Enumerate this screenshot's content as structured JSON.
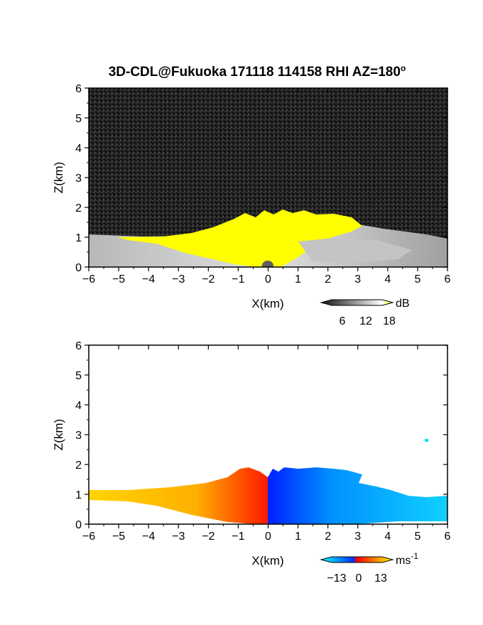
{
  "title": "3D-CDL@Fukuoka 171118 114158 RHI AZ=180",
  "title_sup": "o",
  "chart_data": [
    {
      "type": "heatmap",
      "name": "reflectivity",
      "xlabel": "X(km)",
      "ylabel": "Z(km)",
      "xlim": [
        -6,
        6
      ],
      "ylim": [
        0,
        6
      ],
      "x_ticks": [
        "-6",
        "-5",
        "-4",
        "-3",
        "-2",
        "-1",
        "0",
        "1",
        "2",
        "3",
        "4",
        "5",
        "6"
      ],
      "y_ticks": [
        "0",
        "1",
        "2",
        "3",
        "4",
        "5",
        "6"
      ],
      "colorbar": {
        "unit": "dB",
        "ticks": [
          "6",
          "12",
          "18"
        ],
        "range": [
          0,
          20
        ],
        "palette": [
          "#111111",
          "#ffffff",
          "#ffff00"
        ]
      },
      "echo_top_km": [
        [
          -6,
          1.0
        ],
        [
          -5,
          0.9
        ],
        [
          -4,
          0.9
        ],
        [
          -3,
          1.0
        ],
        [
          -2,
          1.2
        ],
        [
          -1,
          1.5
        ],
        [
          0,
          1.8
        ],
        [
          1,
          1.8
        ],
        [
          2,
          1.7
        ],
        [
          3,
          1.5
        ],
        [
          4,
          1.2
        ],
        [
          5,
          1.0
        ],
        [
          6,
          1.0
        ]
      ]
    },
    {
      "type": "heatmap",
      "name": "doppler_velocity",
      "xlabel": "X(km)",
      "ylabel": "Z(km)",
      "xlim": [
        -6,
        6
      ],
      "ylim": [
        0,
        6
      ],
      "x_ticks": [
        "-6",
        "-5",
        "-4",
        "-3",
        "-2",
        "-1",
        "0",
        "1",
        "2",
        "3",
        "4",
        "5",
        "6"
      ],
      "y_ticks": [
        "0",
        "1",
        "2",
        "3",
        "4",
        "5",
        "6"
      ],
      "colorbar": {
        "unit": "ms",
        "unit_sup": "-1",
        "ticks": [
          "-13",
          "0",
          "13"
        ],
        "range": [
          -13,
          13
        ],
        "palette": [
          "#00ffff",
          "#0030ff",
          "#ff0000",
          "#ffff00"
        ]
      },
      "echo_top_km": [
        [
          -6,
          1.1
        ],
        [
          -5,
          1.1
        ],
        [
          -4,
          1.2
        ],
        [
          -3,
          1.25
        ],
        [
          -2,
          1.4
        ],
        [
          -1,
          1.7
        ],
        [
          0,
          1.9
        ],
        [
          1,
          1.8
        ],
        [
          2,
          1.75
        ],
        [
          3,
          1.3
        ],
        [
          4,
          1.0
        ],
        [
          5,
          0.95
        ],
        [
          6,
          0.95
        ]
      ]
    }
  ]
}
